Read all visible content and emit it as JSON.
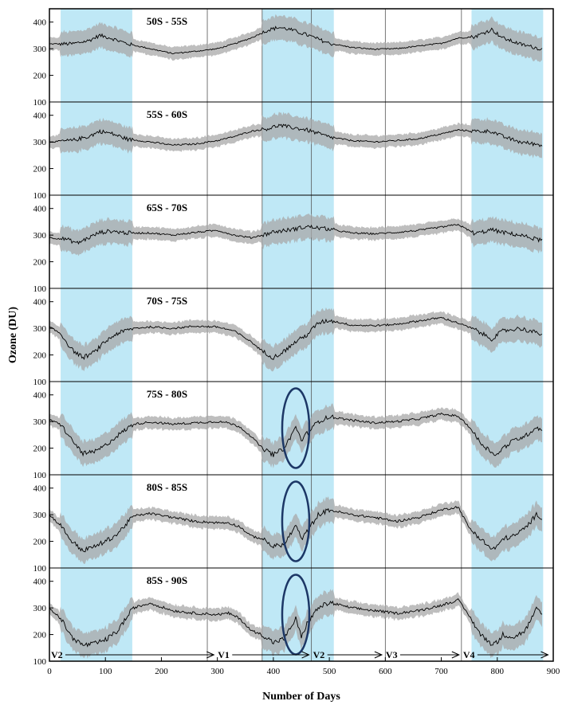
{
  "chart_data": {
    "type": "line",
    "xlabel": "Number of Days",
    "ylabel": "Ozone (DU)",
    "xlim": [
      0,
      900
    ],
    "ylim": [
      100,
      450
    ],
    "x_ticks": [
      "0",
      "100",
      "200",
      "300",
      "400",
      "500",
      "600",
      "700",
      "800",
      "900"
    ],
    "y_ticks": [
      "100",
      "200",
      "300",
      "400"
    ],
    "shaded_intervals": [
      [
        20,
        148
      ],
      [
        380,
        508
      ],
      [
        754,
        882
      ]
    ],
    "vertical_lines": [
      282,
      380,
      468,
      600,
      736
    ],
    "highlight_color": "#bfe8f6",
    "band_color": "#a8a8a8",
    "line_color": "#000000",
    "ellipse_color": "#1c3766",
    "ellipse_centers_x": [
      440,
      440,
      440
    ],
    "period_labels": [
      {
        "label": "V2",
        "x_start": 0,
        "x_end": 298
      },
      {
        "label": "V1",
        "x_start": 298,
        "x_end": 468
      },
      {
        "label": "V2",
        "x_start": 468,
        "x_end": 598
      },
      {
        "label": "V3",
        "x_start": 598,
        "x_end": 736
      },
      {
        "label": "V4",
        "x_start": 736,
        "x_end": 895
      }
    ],
    "series": [
      {
        "name": "50S - 55S",
        "x": [
          0,
          40,
          70,
          90,
          110,
          140,
          180,
          220,
          260,
          300,
          330,
          360,
          390,
          410,
          430,
          460,
          500,
          540,
          580,
          620,
          660,
          700,
          730,
          760,
          790,
          810,
          840,
          880
        ],
        "values": [
          318,
          318,
          330,
          350,
          340,
          318,
          300,
          282,
          290,
          300,
          318,
          340,
          370,
          380,
          372,
          352,
          320,
          305,
          298,
          300,
          310,
          320,
          340,
          345,
          372,
          340,
          318,
          298
        ]
      },
      {
        "name": "55S - 60S",
        "x": [
          0,
          40,
          70,
          90,
          110,
          140,
          180,
          220,
          260,
          300,
          330,
          360,
          390,
          410,
          430,
          460,
          500,
          540,
          580,
          620,
          660,
          700,
          730,
          760,
          790,
          810,
          840,
          880
        ],
        "values": [
          300,
          305,
          320,
          340,
          332,
          310,
          300,
          288,
          292,
          305,
          320,
          340,
          350,
          362,
          355,
          345,
          318,
          305,
          300,
          305,
          312,
          330,
          345,
          340,
          340,
          320,
          300,
          288
        ]
      },
      {
        "name": "65S - 70S",
        "x": [
          0,
          30,
          50,
          70,
          90,
          110,
          140,
          180,
          220,
          260,
          300,
          330,
          360,
          380,
          400,
          430,
          460,
          500,
          540,
          580,
          620,
          660,
          700,
          730,
          760,
          790,
          810,
          840,
          880
        ],
        "values": [
          290,
          285,
          270,
          290,
          310,
          315,
          308,
          308,
          300,
          310,
          318,
          300,
          290,
          300,
          312,
          320,
          332,
          322,
          308,
          305,
          310,
          318,
          330,
          340,
          305,
          320,
          310,
          300,
          280
        ]
      },
      {
        "name": "70S - 75S",
        "x": [
          0,
          20,
          40,
          60,
          80,
          100,
          120,
          150,
          180,
          220,
          260,
          300,
          330,
          360,
          380,
          400,
          420,
          440,
          460,
          480,
          500,
          540,
          580,
          620,
          660,
          700,
          730,
          760,
          790,
          810,
          840,
          880
        ],
        "values": [
          305,
          280,
          220,
          190,
          210,
          250,
          280,
          300,
          305,
          300,
          308,
          305,
          290,
          250,
          215,
          190,
          215,
          250,
          275,
          320,
          330,
          312,
          310,
          315,
          328,
          340,
          320,
          295,
          260,
          290,
          300,
          278
        ]
      },
      {
        "name": "75S - 80S",
        "x": [
          0,
          20,
          40,
          60,
          80,
          100,
          120,
          150,
          180,
          220,
          260,
          300,
          320,
          340,
          360,
          380,
          400,
          420,
          440,
          450,
          460,
          480,
          500,
          540,
          580,
          620,
          660,
          700,
          730,
          750,
          770,
          790,
          800,
          810,
          830,
          850,
          870,
          880
        ],
        "values": [
          305,
          290,
          230,
          180,
          185,
          210,
          245,
          290,
          298,
          290,
          295,
          300,
          295,
          280,
          245,
          200,
          175,
          200,
          280,
          230,
          255,
          300,
          318,
          305,
          295,
          300,
          310,
          328,
          320,
          280,
          220,
          185,
          175,
          200,
          230,
          245,
          280,
          265
        ]
      },
      {
        "name": "80S - 85S",
        "x": [
          0,
          20,
          40,
          60,
          80,
          100,
          120,
          150,
          180,
          220,
          260,
          300,
          320,
          340,
          360,
          380,
          400,
          420,
          440,
          450,
          460,
          480,
          500,
          540,
          580,
          620,
          660,
          700,
          730,
          750,
          770,
          790,
          800,
          810,
          830,
          850,
          870,
          880
        ],
        "values": [
          300,
          260,
          200,
          165,
          180,
          200,
          225,
          295,
          305,
          290,
          275,
          270,
          270,
          255,
          220,
          210,
          180,
          190,
          260,
          210,
          235,
          300,
          318,
          300,
          290,
          275,
          290,
          318,
          330,
          250,
          210,
          170,
          180,
          210,
          220,
          250,
          300,
          290
        ]
      },
      {
        "name": "85S - 90S",
        "x": [
          0,
          20,
          40,
          60,
          80,
          100,
          120,
          150,
          180,
          220,
          260,
          300,
          320,
          340,
          360,
          380,
          400,
          420,
          440,
          450,
          460,
          480,
          500,
          540,
          580,
          620,
          660,
          700,
          730,
          750,
          770,
          790,
          800,
          810,
          830,
          850,
          870,
          880
        ],
        "values": [
          300,
          260,
          190,
          160,
          165,
          180,
          210,
          300,
          318,
          290,
          280,
          275,
          280,
          260,
          215,
          200,
          170,
          185,
          260,
          190,
          240,
          300,
          320,
          300,
          290,
          280,
          290,
          310,
          330,
          270,
          200,
          165,
          170,
          200,
          190,
          215,
          295,
          275
        ]
      }
    ]
  }
}
